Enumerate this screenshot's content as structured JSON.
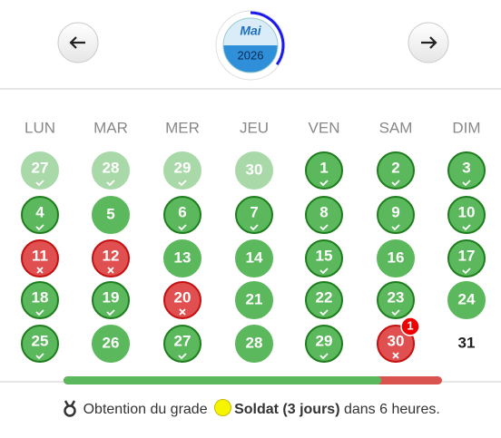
{
  "header": {
    "month": "Mai",
    "year": "2026",
    "month_progress": 35
  },
  "weekdays": [
    "LUN",
    "MAR",
    "MER",
    "JEU",
    "VEN",
    "SAM",
    "DIM"
  ],
  "weeks": [
    [
      {
        "label": "27",
        "state": "faded-done"
      },
      {
        "label": "28",
        "state": "faded-done"
      },
      {
        "label": "29",
        "state": "faded-done"
      },
      {
        "label": "30",
        "state": "faded"
      },
      {
        "label": "1",
        "state": "done"
      },
      {
        "label": "2",
        "state": "done"
      },
      {
        "label": "3",
        "state": "done"
      }
    ],
    [
      {
        "label": "4",
        "state": "done"
      },
      {
        "label": "5",
        "state": "green"
      },
      {
        "label": "6",
        "state": "done"
      },
      {
        "label": "7",
        "state": "done"
      },
      {
        "label": "8",
        "state": "done"
      },
      {
        "label": "9",
        "state": "done"
      },
      {
        "label": "10",
        "state": "done"
      }
    ],
    [
      {
        "label": "11",
        "state": "missed"
      },
      {
        "label": "12",
        "state": "missed"
      },
      {
        "label": "13",
        "state": "green"
      },
      {
        "label": "14",
        "state": "green"
      },
      {
        "label": "15",
        "state": "done"
      },
      {
        "label": "16",
        "state": "green"
      },
      {
        "label": "17",
        "state": "done"
      }
    ],
    [
      {
        "label": "18",
        "state": "done"
      },
      {
        "label": "19",
        "state": "done"
      },
      {
        "label": "20",
        "state": "missed"
      },
      {
        "label": "21",
        "state": "green"
      },
      {
        "label": "22",
        "state": "done"
      },
      {
        "label": "23",
        "state": "done"
      },
      {
        "label": "24",
        "state": "green"
      }
    ],
    [
      {
        "label": "25",
        "state": "done"
      },
      {
        "label": "26",
        "state": "green"
      },
      {
        "label": "27",
        "state": "done"
      },
      {
        "label": "28",
        "state": "green"
      },
      {
        "label": "29",
        "state": "done"
      },
      {
        "label": "30",
        "state": "missed",
        "badge": "1"
      },
      {
        "label": "31",
        "state": "none"
      }
    ]
  ],
  "progress": 84,
  "footer": {
    "prefix": "Obtention du grade",
    "grade": "Soldat (3 jours)",
    "suffix": "dans 6 heures."
  }
}
